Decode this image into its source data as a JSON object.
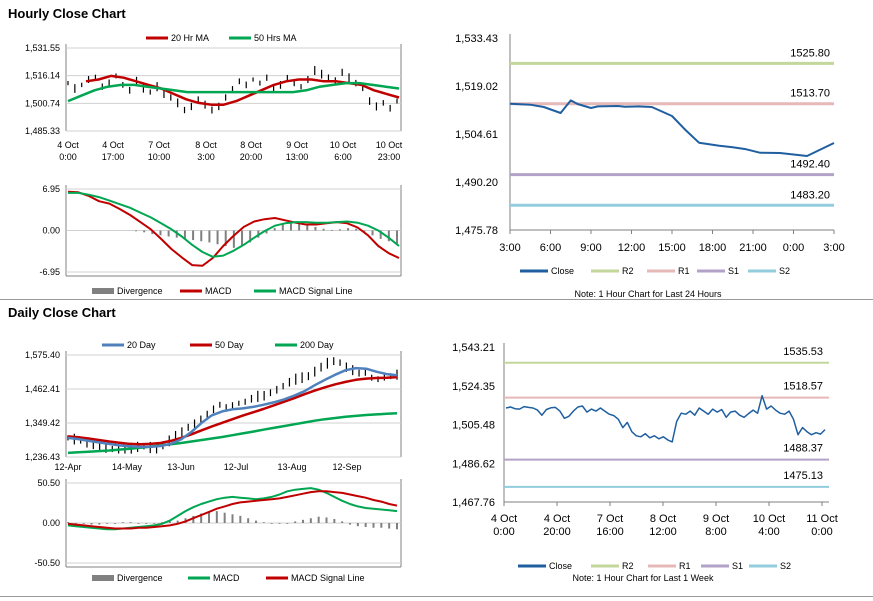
{
  "sections": {
    "hourly_title": "Hourly Close Chart",
    "daily_title": "Daily Close Chart"
  },
  "colors": {
    "price": "#000000",
    "ma_short": "#c00000",
    "ma_long": "#00a651",
    "ma_blue": "#4f81bd",
    "divergence": "#808080",
    "close": "#1f5fa0",
    "r2": "#c3d69b",
    "r1": "#e6b9b8",
    "s1": "#b3a2c7",
    "s2": "#93cddd",
    "axis": "#808080"
  },
  "chart_data": [
    {
      "id": "hourly_price",
      "type": "line",
      "title": "",
      "legend": [
        "20 Hr MA",
        "50 Hrs MA"
      ],
      "y_ticks": [
        "1,531.55",
        "1,516.14",
        "1,500.74",
        "1,485.33"
      ],
      "ylim": [
        1485.33,
        1531.55
      ],
      "x_ticks": [
        [
          "4 Oct",
          "0:00"
        ],
        [
          "4 Oct",
          "17:00"
        ],
        [
          "7 Oct",
          "10:00"
        ],
        [
          "8 Oct",
          "3:00"
        ],
        [
          "8 Oct",
          "20:00"
        ],
        [
          "9 Oct",
          "13:00"
        ],
        [
          "10 Oct",
          "6:00"
        ],
        [
          "10 Oct",
          "23:00"
        ]
      ],
      "price": [
        1512,
        1509,
        1511,
        1514,
        1515,
        1510,
        1512,
        1516,
        1511,
        1508,
        1513,
        1509,
        1507,
        1510,
        1506,
        1504,
        1501,
        1497,
        1499,
        1503,
        1500,
        1497,
        1499,
        1504,
        1509,
        1513,
        1511,
        1514,
        1512,
        1515,
        1509,
        1511,
        1515,
        1512,
        1510,
        1514,
        1519,
        1517,
        1515,
        1513,
        1518,
        1515,
        1512,
        1509,
        1502,
        1499,
        1501,
        1498,
        1502
      ],
      "series": [
        {
          "name": "20 Hr MA",
          "values": [
            1513,
            1514,
            1516,
            1515,
            1513,
            1511,
            1509,
            1506,
            1503,
            1501,
            1500,
            1500,
            1502,
            1505,
            1508,
            1511,
            1513,
            1514,
            1514,
            1513,
            1513,
            1512,
            1511,
            1508,
            1506,
            1504
          ]
        },
        {
          "name": "50 Hrs MA",
          "values": [
            1502,
            1505,
            1508,
            1510,
            1511,
            1511,
            1510,
            1509,
            1508,
            1507,
            1507,
            1507,
            1507,
            1507,
            1507,
            1507,
            1507,
            1507,
            1508,
            1510,
            1511,
            1512,
            1512,
            1511,
            1510,
            1509
          ]
        }
      ]
    },
    {
      "id": "hourly_macd",
      "type": "line",
      "legend": [
        "Divergence",
        "MACD",
        "MACD Signal Line"
      ],
      "y_ticks": [
        "6.95",
        "0.00",
        "-6.95"
      ],
      "ylim": [
        -6.95,
        6.95
      ],
      "divergence": [
        0,
        -0.3,
        -0.6,
        -0.8,
        -1.0,
        -1.2,
        -1.4,
        -1.6,
        -1.8,
        -2.0,
        -2.3,
        -2.6,
        -2.9,
        -2.6,
        -2.0,
        -1.2,
        -0.5,
        0.4,
        1.0,
        1.3,
        1.2,
        0.9,
        0.6,
        0.3,
        0.1,
        0.2,
        0.4,
        0.3,
        -0.2,
        -0.8,
        -1.4,
        -1.8,
        -2.2
      ],
      "series": [
        {
          "name": "MACD",
          "values": [
            6.5,
            6.4,
            5.8,
            4.9,
            4.5,
            3.6,
            2.6,
            1.4,
            0.2,
            -1.4,
            -3.1,
            -4.5,
            -5.8,
            -5.9,
            -4.6,
            -2.6,
            -0.9,
            0.6,
            1.5,
            1.9,
            2.1,
            1.7,
            1.3,
            1.0,
            1.0,
            1.2,
            1.4,
            1.2,
            0.5,
            -0.8,
            -2.6,
            -3.8,
            -4.6
          ]
        },
        {
          "name": "MACD Signal Line",
          "values": [
            6.3,
            6.3,
            6.0,
            5.6,
            5.0,
            4.4,
            3.8,
            3.0,
            2.2,
            1.2,
            0.2,
            -1.0,
            -2.4,
            -3.6,
            -4.4,
            -4.2,
            -3.4,
            -2.4,
            -1.2,
            -0.1,
            0.8,
            1.2,
            1.4,
            1.4,
            1.3,
            1.3,
            1.4,
            1.5,
            1.3,
            0.8,
            0.0,
            -1.2,
            -2.6
          ]
        }
      ]
    },
    {
      "id": "hourly_close",
      "type": "line",
      "y_ticks": [
        "1,533.43",
        "1,519.02",
        "1,504.61",
        "1,490.20",
        "1,475.78"
      ],
      "ylim": [
        1475.78,
        1533.43
      ],
      "x_ticks": [
        "3:00",
        "6:00",
        "9:00",
        "12:00",
        "15:00",
        "18:00",
        "21:00",
        "0:00",
        "3:00"
      ],
      "x": [
        0,
        3,
        5,
        7.5,
        9,
        10,
        12,
        13,
        16,
        17,
        19,
        21,
        24,
        26,
        28,
        31,
        33,
        35,
        37,
        40,
        44,
        48
      ],
      "close": [
        1513.7,
        1513.4,
        1512.7,
        1510.9,
        1514.7,
        1513.6,
        1512.4,
        1512.9,
        1513.0,
        1512.8,
        1512.9,
        1512.7,
        1510.0,
        1505.8,
        1502.0,
        1501.1,
        1500.6,
        1500.0,
        1499.0,
        1498.9,
        1498.0,
        1501.9
      ],
      "levels": [
        {
          "name": "R2",
          "value": 1525.8,
          "label": "1525.80"
        },
        {
          "name": "R1",
          "value": 1513.7,
          "label": "1513.70"
        },
        {
          "name": "S1",
          "value": 1492.4,
          "label": "1492.40"
        },
        {
          "name": "S2",
          "value": 1483.2,
          "label": "1483.20"
        }
      ],
      "legend": [
        "Close",
        "R2",
        "R1",
        "S1",
        "S2"
      ],
      "note": "Note: 1 Hour Chart for Last 24 Hours"
    },
    {
      "id": "daily_price",
      "type": "line",
      "legend": [
        "20 Day",
        "50 Day",
        "200 Day"
      ],
      "y_ticks": [
        "1,575.40",
        "1,462.41",
        "1,349.42",
        "1,236.43"
      ],
      "ylim": [
        1236.43,
        1575.4
      ],
      "x_ticks": [
        "12-Apr",
        "14-May",
        "13-Jun",
        "12-Jul",
        "13-Aug",
        "12-Sep"
      ],
      "price": [
        1300,
        1296,
        1290,
        1282,
        1275,
        1270,
        1265,
        1263,
        1260,
        1262,
        1266,
        1270,
        1272,
        1268,
        1265,
        1275,
        1290,
        1310,
        1320,
        1335,
        1345,
        1360,
        1375,
        1395,
        1410,
        1400,
        1405,
        1415,
        1420,
        1430,
        1438,
        1440,
        1450,
        1460,
        1472,
        1485,
        1495,
        1500,
        1505,
        1520,
        1535,
        1548,
        1555,
        1550,
        1535,
        1525,
        1515,
        1520,
        1500,
        1495,
        1502,
        1505,
        1510
      ],
      "series": [
        {
          "name": "20 Day",
          "values": [
            1300,
            1296,
            1290,
            1285,
            1280,
            1275,
            1272,
            1270,
            1270,
            1273,
            1280,
            1295,
            1320,
            1350,
            1375,
            1388,
            1395,
            1398,
            1403,
            1410,
            1418,
            1428,
            1440,
            1455,
            1475,
            1493,
            1510,
            1525,
            1532,
            1530,
            1520,
            1512,
            1508
          ]
        },
        {
          "name": "50 Day",
          "values": [
            1305,
            1302,
            1298,
            1293,
            1288,
            1284,
            1280,
            1279,
            1280,
            1283,
            1290,
            1300,
            1312,
            1325,
            1338,
            1350,
            1362,
            1374,
            1385,
            1396,
            1408,
            1420,
            1432,
            1445,
            1457,
            1468,
            1478,
            1486,
            1493,
            1497,
            1499,
            1500,
            1502
          ]
        },
        {
          "name": "200 Day",
          "values": [
            1250,
            1252,
            1254,
            1256,
            1258,
            1261,
            1264,
            1267,
            1271,
            1275,
            1279,
            1283,
            1288,
            1293,
            1298,
            1303,
            1309,
            1315,
            1321,
            1327,
            1333,
            1339,
            1345,
            1351,
            1357,
            1362,
            1366,
            1370,
            1373,
            1376,
            1378,
            1380,
            1382
          ]
        }
      ]
    },
    {
      "id": "daily_macd",
      "type": "line",
      "legend": [
        "Divergence",
        "MACD",
        "MACD Signal Line"
      ],
      "y_ticks": [
        "50.50",
        "0.00",
        "-50.50"
      ],
      "ylim": [
        -50.5,
        50.5
      ],
      "divergence": [
        1,
        0,
        -1,
        -2,
        -2,
        -1,
        0,
        1,
        1,
        0,
        -1,
        0,
        1,
        2,
        3,
        6,
        9,
        12,
        14,
        15,
        13,
        11,
        9,
        6,
        3,
        1,
        0,
        -1,
        0,
        2,
        4,
        6,
        8,
        7,
        5,
        2,
        -2,
        -4,
        -5,
        -6,
        -6,
        -7,
        -8
      ],
      "series": [
        {
          "name": "MACD",
          "values": [
            -3,
            -4,
            -5,
            -6,
            -7,
            -8,
            -8,
            -7,
            -6,
            -5,
            -4,
            -3,
            -1,
            3,
            9,
            15,
            20,
            24,
            27,
            30,
            32,
            33,
            32,
            31,
            30,
            31,
            33,
            36,
            40,
            42,
            43,
            44,
            42,
            38,
            33,
            28,
            24,
            21,
            19,
            18,
            17,
            16,
            15
          ]
        },
        {
          "name": "MACD Signal Line",
          "values": [
            -1,
            -2,
            -3,
            -4,
            -5,
            -6,
            -7,
            -7,
            -7,
            -6,
            -6,
            -5,
            -4,
            -3,
            -1,
            2,
            6,
            10,
            14,
            18,
            21,
            24,
            26,
            27,
            28,
            29,
            30,
            31,
            33,
            35,
            37,
            39,
            40,
            40,
            39,
            38,
            36,
            34,
            32,
            29,
            27,
            24,
            22
          ]
        }
      ]
    },
    {
      "id": "daily_close",
      "type": "line",
      "y_ticks": [
        "1,543.21",
        "1,524.35",
        "1,505.48",
        "1,486.62",
        "1,467.76"
      ],
      "ylim": [
        1467.76,
        1543.21
      ],
      "x_ticks": [
        [
          "4 Oct",
          "0:00"
        ],
        [
          "4 Oct",
          "20:00"
        ],
        [
          "7 Oct",
          "16:00"
        ],
        [
          "8 Oct",
          "12:00"
        ],
        [
          "9 Oct",
          "8:00"
        ],
        [
          "10 Oct",
          "4:00"
        ],
        [
          "11 Oct",
          "0:00"
        ]
      ],
      "close": [
        1513.5,
        1514.0,
        1513.2,
        1513.0,
        1514.2,
        1513.8,
        1513.5,
        1512.5,
        1510.0,
        1512.8,
        1513.6,
        1513.8,
        1512.0,
        1508.5,
        1509.5,
        1512.0,
        1514.0,
        1514.5,
        1511.5,
        1513.0,
        1512.0,
        1513.5,
        1512.0,
        1510.5,
        1509.8,
        1508.0,
        1504.0,
        1506.5,
        1502.0,
        1500.0,
        1499.5,
        1501.0,
        1499.0,
        1500.0,
        1498.5,
        1499.5,
        1498.0,
        1497.0,
        1507.0,
        1511.0,
        1510.5,
        1512.0,
        1510.0,
        1513.5,
        1512.0,
        1510.5,
        1513.0,
        1511.5,
        1512.8,
        1509.0,
        1511.5,
        1512.0,
        1510.0,
        1509.0,
        1510.8,
        1512.5,
        1511.0,
        1519.5,
        1513.0,
        1514.5,
        1512.5,
        1511.0,
        1510.5,
        1512.0,
        1508.0,
        1500.5,
        1504.0,
        1502.0,
        1500.5,
        1501.5,
        1500.8,
        1503.0
      ],
      "levels": [
        {
          "name": "R2",
          "value": 1535.53,
          "label": "1535.53"
        },
        {
          "name": "R1",
          "value": 1518.57,
          "label": "1518.57"
        },
        {
          "name": "S1",
          "value": 1488.37,
          "label": "1488.37"
        },
        {
          "name": "S2",
          "value": 1475.13,
          "label": "1475.13"
        }
      ],
      "legend": [
        "Close",
        "R2",
        "R1",
        "S1",
        "S2"
      ],
      "note": "Note: 1 Hour Chart for Last 1 Week"
    }
  ]
}
